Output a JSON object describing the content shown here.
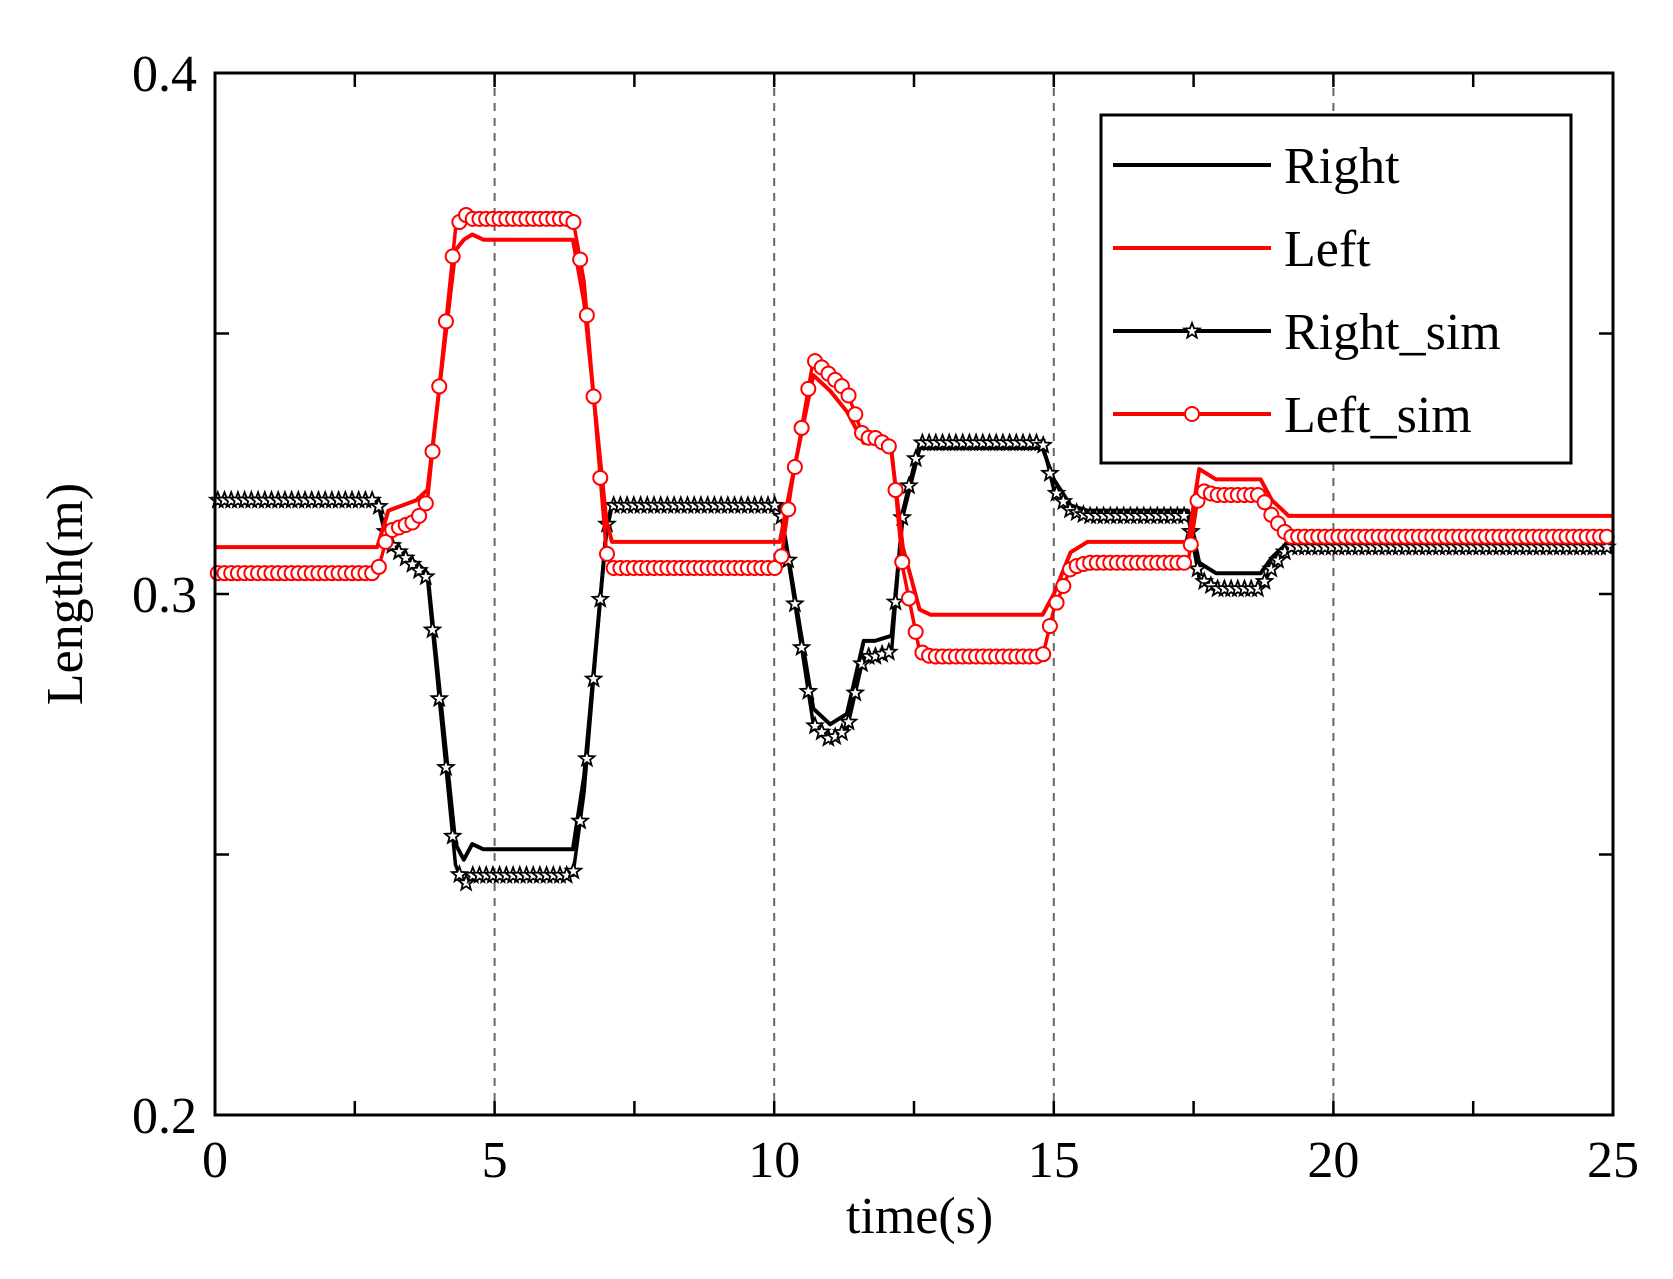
{
  "chart_data": {
    "type": "line",
    "title": "",
    "xlabel": "time(s)",
    "ylabel": "Length(m)",
    "xlim": [
      0,
      25
    ],
    "ylim": [
      0.2,
      0.4
    ],
    "xticks": [
      0,
      5,
      10,
      15,
      20,
      25
    ],
    "xtick_labels": [
      "0",
      "5",
      "10",
      "15",
      "20",
      "25"
    ],
    "yticks": [
      0.2,
      0.3,
      0.4
    ],
    "ytick_labels": [
      "0.2",
      "0.3",
      "0.4"
    ],
    "vertical_dashed_lines": [
      5,
      10,
      15,
      20
    ],
    "legend_position": "top-right",
    "series": [
      {
        "name": "Right",
        "color": "#000000",
        "marker": "none",
        "x": [
          0,
          2.9,
          3.1,
          3.6,
          3.8,
          4.3,
          4.45,
          4.6,
          4.8,
          6.4,
          6.6,
          7.0,
          7.1,
          7.3,
          10.1,
          10.3,
          10.7,
          11.0,
          11.3,
          11.6,
          11.8,
          12.1,
          12.3,
          12.6,
          12.8,
          14.8,
          15.0,
          15.3,
          15.6,
          17.4,
          17.6,
          17.9,
          18.7,
          18.9,
          19.2,
          19.6,
          25
        ],
        "y": [
          0.318,
          0.318,
          0.309,
          0.306,
          0.304,
          0.252,
          0.249,
          0.252,
          0.251,
          0.251,
          0.265,
          0.312,
          0.317,
          0.317,
          0.317,
          0.304,
          0.278,
          0.275,
          0.277,
          0.291,
          0.291,
          0.292,
          0.315,
          0.328,
          0.328,
          0.328,
          0.322,
          0.317,
          0.316,
          0.316,
          0.306,
          0.304,
          0.304,
          0.307,
          0.31,
          0.311,
          0.311
        ]
      },
      {
        "name": "Left",
        "color": "#ff0000",
        "marker": "none",
        "x": [
          0,
          2.9,
          3.1,
          3.6,
          3.8,
          4.3,
          4.45,
          4.6,
          4.8,
          6.4,
          6.6,
          7.0,
          7.1,
          7.3,
          10.1,
          10.3,
          10.7,
          11.0,
          11.3,
          11.6,
          11.8,
          12.1,
          12.3,
          12.6,
          12.8,
          14.8,
          15.0,
          15.3,
          15.6,
          17.4,
          17.6,
          17.9,
          18.7,
          18.9,
          19.2,
          19.6,
          25
        ],
        "y": [
          0.309,
          0.309,
          0.316,
          0.318,
          0.32,
          0.366,
          0.368,
          0.369,
          0.368,
          0.368,
          0.356,
          0.314,
          0.31,
          0.31,
          0.31,
          0.321,
          0.342,
          0.339,
          0.335,
          0.329,
          0.329,
          0.327,
          0.309,
          0.297,
          0.296,
          0.296,
          0.3,
          0.308,
          0.31,
          0.31,
          0.324,
          0.322,
          0.322,
          0.318,
          0.315,
          0.315,
          0.315
        ]
      },
      {
        "name": "Right_sim",
        "color": "#000000",
        "marker": "star",
        "x": [
          0,
          2.9,
          3.1,
          3.6,
          3.8,
          4.3,
          4.45,
          4.6,
          4.8,
          6.4,
          6.6,
          7.0,
          7.1,
          7.3,
          10.1,
          10.3,
          10.7,
          11.0,
          11.3,
          11.6,
          11.8,
          12.1,
          12.3,
          12.6,
          12.8,
          14.8,
          15.0,
          15.3,
          15.6,
          17.4,
          17.6,
          17.9,
          18.7,
          18.9,
          19.2,
          19.6,
          25
        ],
        "y": [
          0.318,
          0.318,
          0.31,
          0.305,
          0.303,
          0.248,
          0.244,
          0.246,
          0.246,
          0.246,
          0.262,
          0.313,
          0.317,
          0.317,
          0.317,
          0.303,
          0.275,
          0.272,
          0.274,
          0.288,
          0.288,
          0.289,
          0.316,
          0.329,
          0.329,
          0.329,
          0.32,
          0.316,
          0.315,
          0.315,
          0.303,
          0.301,
          0.301,
          0.305,
          0.309,
          0.309,
          0.309
        ]
      },
      {
        "name": "Left_sim",
        "color": "#ff0000",
        "marker": "circle",
        "x": [
          0,
          2.9,
          3.1,
          3.6,
          3.8,
          4.3,
          4.45,
          4.6,
          4.8,
          6.4,
          6.6,
          7.0,
          7.1,
          7.3,
          10.1,
          10.3,
          10.7,
          11.0,
          11.3,
          11.6,
          11.8,
          12.1,
          12.3,
          12.6,
          12.8,
          14.8,
          15.0,
          15.3,
          15.6,
          17.4,
          17.6,
          17.9,
          18.7,
          18.9,
          19.2,
          19.6,
          25
        ],
        "y": [
          0.304,
          0.304,
          0.312,
          0.314,
          0.318,
          0.37,
          0.373,
          0.372,
          0.372,
          0.372,
          0.36,
          0.308,
          0.305,
          0.305,
          0.305,
          0.32,
          0.345,
          0.342,
          0.339,
          0.33,
          0.33,
          0.328,
          0.305,
          0.289,
          0.288,
          0.288,
          0.297,
          0.305,
          0.306,
          0.306,
          0.32,
          0.319,
          0.319,
          0.315,
          0.311,
          0.311,
          0.311
        ]
      }
    ]
  }
}
